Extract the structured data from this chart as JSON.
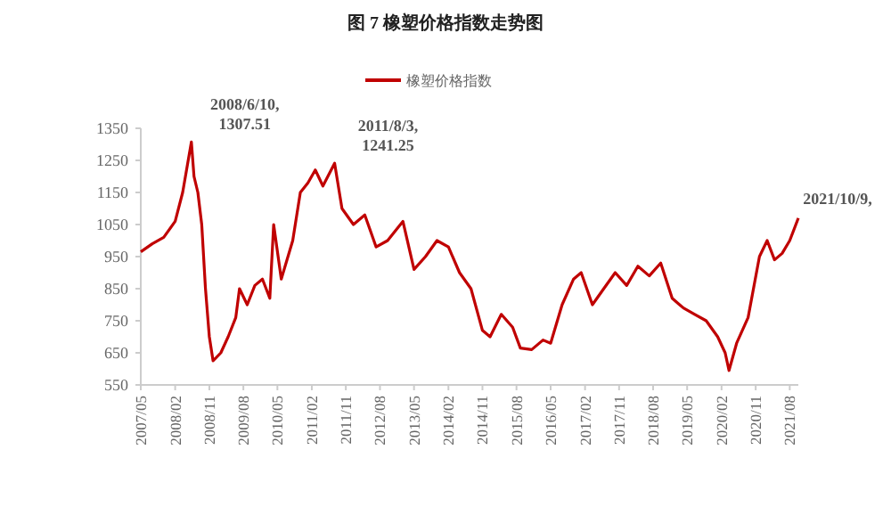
{
  "chart_data": {
    "type": "line",
    "title": "图 7  橡塑价格指数走势图",
    "legend": "top",
    "grid": false,
    "marker": "none",
    "line_style": "solid",
    "x": [
      "2007-05",
      "2007-08",
      "2007-11",
      "2008-02",
      "2008-04",
      "2008-06-10",
      "2008-07",
      "2008-08",
      "2008-09",
      "2008-10",
      "2008-11",
      "2008-12",
      "2009-02",
      "2009-04",
      "2009-06",
      "2009-07",
      "2009-09",
      "2009-11",
      "2010-01",
      "2010-03",
      "2010-04",
      "2010-06",
      "2010-09",
      "2010-11",
      "2011-01",
      "2011-03",
      "2011-05",
      "2011-08-03",
      "2011-10",
      "2012-01",
      "2012-04",
      "2012-07",
      "2012-10",
      "2013-02",
      "2013-05",
      "2013-08",
      "2013-11",
      "2014-02",
      "2014-05",
      "2014-08",
      "2014-11",
      "2015-01",
      "2015-04",
      "2015-07",
      "2015-09",
      "2015-12",
      "2016-03",
      "2016-05",
      "2016-08",
      "2016-11",
      "2017-01",
      "2017-04",
      "2017-07",
      "2017-10",
      "2018-01",
      "2018-04",
      "2018-07",
      "2018-10",
      "2019-01",
      "2019-04",
      "2019-07",
      "2019-10",
      "2020-01",
      "2020-03",
      "2020-04",
      "2020-06",
      "2020-09",
      "2020-12",
      "2021-02",
      "2021-04",
      "2021-06",
      "2021-08",
      "2021-10-09"
    ],
    "series": [
      {
        "name": "橡塑价格指数",
        "color": "#c00000",
        "values": [
          965,
          990,
          1010,
          1060,
          1150,
          1307.51,
          1200,
          1150,
          1050,
          850,
          700,
          625,
          650,
          700,
          760,
          850,
          800,
          860,
          880,
          820,
          1050,
          880,
          1000,
          1150,
          1180,
          1220,
          1170,
          1241.25,
          1100,
          1050,
          1080,
          980,
          1000,
          1060,
          910,
          950,
          1000,
          980,
          900,
          850,
          720,
          700,
          770,
          730,
          665,
          660,
          690,
          680,
          800,
          880,
          900,
          800,
          850,
          900,
          860,
          920,
          890,
          930,
          820,
          790,
          770,
          750,
          700,
          650,
          595,
          680,
          760,
          950,
          1000,
          940,
          960,
          1000,
          1070
        ]
      }
    ],
    "xlim": [
      "2007-05",
      "2021-10-09"
    ],
    "xticks": [
      {
        "value": "2007-05",
        "label": "2007/05"
      },
      {
        "value": "2008-02",
        "label": "2008/02"
      },
      {
        "value": "2008-11",
        "label": "2008/11"
      },
      {
        "value": "2009-08",
        "label": "2009/08"
      },
      {
        "value": "2010-05",
        "label": "2010/05"
      },
      {
        "value": "2011-02",
        "label": "2011/02"
      },
      {
        "value": "2011-11",
        "label": "2011/11"
      },
      {
        "value": "2012-08",
        "label": "2012/08"
      },
      {
        "value": "2013-05",
        "label": "2013/05"
      },
      {
        "value": "2014-02",
        "label": "2014/02"
      },
      {
        "value": "2014-11",
        "label": "2014/11"
      },
      {
        "value": "2015-08",
        "label": "2015/08"
      },
      {
        "value": "2016-05",
        "label": "2016/05"
      },
      {
        "value": "2017-02",
        "label": "2017/02"
      },
      {
        "value": "2017-11",
        "label": "2017/11"
      },
      {
        "value": "2018-08",
        "label": "2018/08"
      },
      {
        "value": "2019-05",
        "label": "2019/05"
      },
      {
        "value": "2020-02",
        "label": "2020/02"
      },
      {
        "value": "2020-11",
        "label": "2020/11"
      },
      {
        "value": "2021-08",
        "label": "2021/08"
      }
    ],
    "ylim": [
      550,
      1350
    ],
    "yticks": [
      550,
      650,
      750,
      850,
      950,
      1050,
      1150,
      1250,
      1350
    ],
    "annotations": [
      {
        "text": "2008/6/10,\n1307.51",
        "x": "2008-06-10",
        "y": 1307.51
      },
      {
        "text": "2011/8/3,\n1241.25",
        "x": "2011-08-03",
        "y": 1241.25
      },
      {
        "text": "2021/10/9,",
        "x": "2021-10-09",
        "y": 1070
      }
    ]
  }
}
